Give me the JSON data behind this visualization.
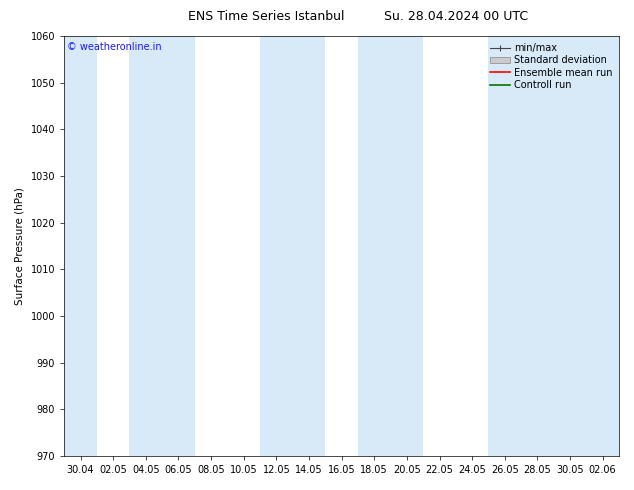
{
  "title_left": "ENS Time Series Istanbul",
  "title_right": "Su. 28.04.2024 00 UTC",
  "ylabel": "Surface Pressure (hPa)",
  "ylim": [
    970,
    1060
  ],
  "yticks": [
    970,
    980,
    990,
    1000,
    1010,
    1020,
    1030,
    1040,
    1050,
    1060
  ],
  "xtick_labels": [
    "30.04",
    "02.05",
    "04.05",
    "06.05",
    "08.05",
    "10.05",
    "12.05",
    "14.05",
    "16.05",
    "18.05",
    "20.05",
    "22.05",
    "24.05",
    "26.05",
    "28.05",
    "30.05",
    "02.06"
  ],
  "band_color": "#d8eaf8",
  "background_color": "#ffffff",
  "watermark": "© weatheronline.in",
  "watermark_color": "#1a1aff",
  "legend_items": [
    "min/max",
    "Standard deviation",
    "Ensemble mean run",
    "Controll run"
  ],
  "legend_colors": [
    "#444444",
    "#bbbbbb",
    "#ff0000",
    "#007700"
  ],
  "title_fontsize": 9,
  "axis_fontsize": 7.5,
  "tick_fontsize": 7,
  "legend_fontsize": 7
}
